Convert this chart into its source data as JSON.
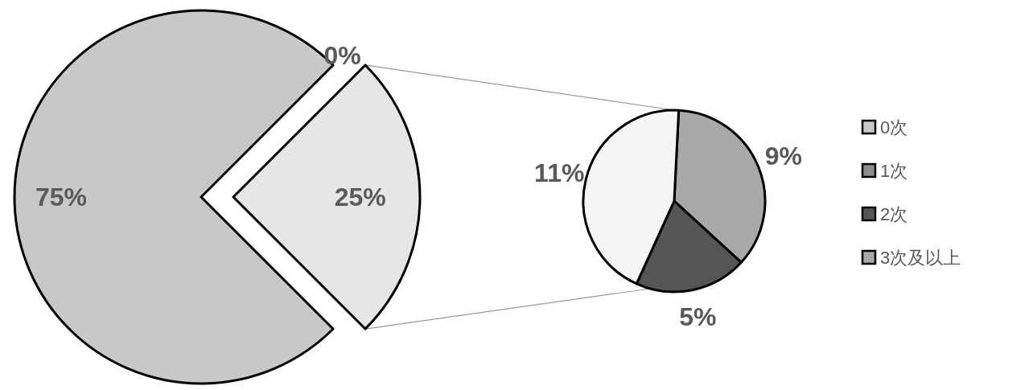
{
  "chart_data": [
    {
      "type": "pie",
      "categories": [
        "0次",
        "1次",
        null
      ],
      "values": [
        75,
        0,
        25
      ],
      "value_labels": [
        "75%",
        "0%",
        "25%"
      ],
      "colors": [
        "#c8c8c8",
        "#8c8c8c",
        "#e6e6e6"
      ],
      "legend": "right"
    },
    {
      "type": "pie",
      "categories": [
        "3次及以上",
        "2次",
        null
      ],
      "values": [
        9,
        5,
        11
      ],
      "value_labels": [
        "9%",
        "5%",
        "11%"
      ],
      "colors": [
        "#a8a8a8",
        "#555555",
        "#f5f5f5"
      ],
      "legend": "right"
    }
  ]
}
